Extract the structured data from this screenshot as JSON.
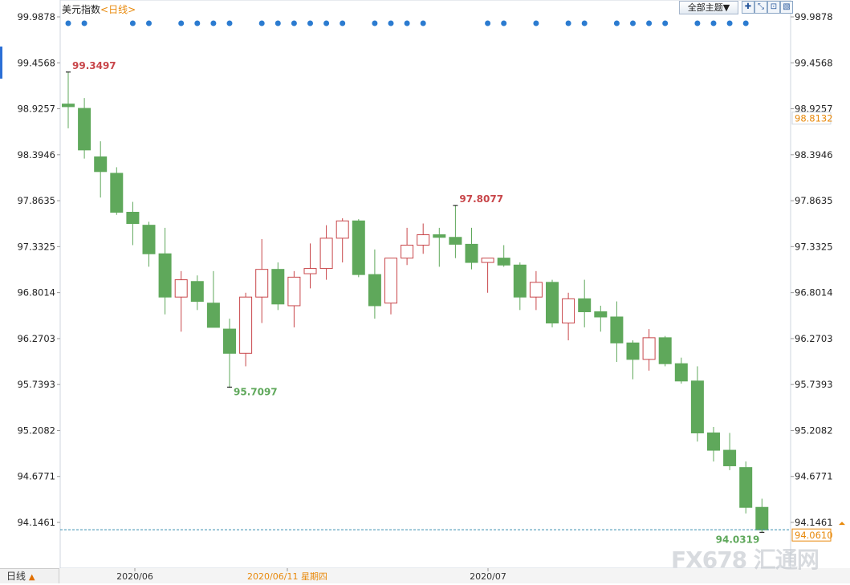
{
  "header": {
    "title": "美元指数",
    "period_label": "<日线>",
    "theme_label": "全部主题▼"
  },
  "toolbar": {
    "zoom_icon": "crosshair-icon",
    "zoom_out_icon": "zoom-out-icon",
    "fit_icon": "fit-icon",
    "compare_icon": "compare-icon"
  },
  "footer": {
    "period_button": "日线",
    "period_arrow": "▲",
    "date_labels": [
      "2020/06",
      "2020/06/11 星期四",
      "2020/07"
    ]
  },
  "watermark": "FX678 汇通网",
  "chart_data": {
    "type": "candlestick",
    "y_ticks": [
      "99.9878",
      "99.4568",
      "98.9257",
      "98.3946",
      "97.8635",
      "97.3325",
      "96.8014",
      "96.2703",
      "95.7393",
      "95.2082",
      "94.6771",
      "94.1461"
    ],
    "ylim": [
      94.1461,
      99.9878
    ],
    "annotations": {
      "high": "99.3497",
      "low": "95.7097",
      "local_high": "97.8077",
      "last_low": "94.0319",
      "current_price": "94.0610",
      "reference_price": "98.8132"
    },
    "candles": [
      {
        "o": 98.98,
        "h": 99.35,
        "l": 98.7,
        "c": 98.95
      },
      {
        "o": 98.93,
        "h": 99.05,
        "l": 98.35,
        "c": 98.45
      },
      {
        "o": 98.37,
        "h": 98.55,
        "l": 97.9,
        "c": 98.2
      },
      {
        "o": 98.18,
        "h": 98.25,
        "l": 97.7,
        "c": 97.73
      },
      {
        "o": 97.73,
        "h": 97.85,
        "l": 97.35,
        "c": 97.6
      },
      {
        "o": 97.58,
        "h": 97.62,
        "l": 97.1,
        "c": 97.25
      },
      {
        "o": 97.25,
        "h": 97.55,
        "l": 96.55,
        "c": 96.75
      },
      {
        "o": 96.75,
        "h": 97.05,
        "l": 96.35,
        "c": 96.95
      },
      {
        "o": 96.93,
        "h": 97.0,
        "l": 96.6,
        "c": 96.7
      },
      {
        "o": 96.68,
        "h": 97.05,
        "l": 96.4,
        "c": 96.4
      },
      {
        "o": 96.38,
        "h": 96.5,
        "l": 95.7,
        "c": 96.1
      },
      {
        "o": 96.1,
        "h": 96.8,
        "l": 95.95,
        "c": 96.75
      },
      {
        "o": 96.75,
        "h": 97.42,
        "l": 96.45,
        "c": 97.07
      },
      {
        "o": 97.07,
        "h": 97.15,
        "l": 96.6,
        "c": 96.67
      },
      {
        "o": 96.65,
        "h": 97.05,
        "l": 96.4,
        "c": 96.98
      },
      {
        "o": 97.02,
        "h": 97.37,
        "l": 96.85,
        "c": 97.08
      },
      {
        "o": 97.08,
        "h": 97.58,
        "l": 96.95,
        "c": 97.43
      },
      {
        "o": 97.43,
        "h": 97.66,
        "l": 97.15,
        "c": 97.63
      },
      {
        "o": 97.63,
        "h": 97.65,
        "l": 96.98,
        "c": 97.01
      },
      {
        "o": 97.01,
        "h": 97.3,
        "l": 96.5,
        "c": 96.65
      },
      {
        "o": 96.68,
        "h": 97.2,
        "l": 96.55,
        "c": 97.2
      },
      {
        "o": 97.2,
        "h": 97.55,
        "l": 97.12,
        "c": 97.35
      },
      {
        "o": 97.35,
        "h": 97.6,
        "l": 97.25,
        "c": 97.47
      },
      {
        "o": 97.47,
        "h": 97.55,
        "l": 97.1,
        "c": 97.44
      },
      {
        "o": 97.44,
        "h": 97.81,
        "l": 97.2,
        "c": 97.36
      },
      {
        "o": 97.36,
        "h": 97.55,
        "l": 97.07,
        "c": 97.15
      },
      {
        "o": 97.15,
        "h": 97.2,
        "l": 96.8,
        "c": 97.2
      },
      {
        "o": 97.2,
        "h": 97.35,
        "l": 97.1,
        "c": 97.12
      },
      {
        "o": 97.12,
        "h": 97.15,
        "l": 96.6,
        "c": 96.75
      },
      {
        "o": 96.75,
        "h": 97.05,
        "l": 96.6,
        "c": 96.92
      },
      {
        "o": 96.92,
        "h": 96.95,
        "l": 96.4,
        "c": 96.45
      },
      {
        "o": 96.45,
        "h": 96.8,
        "l": 96.25,
        "c": 96.73
      },
      {
        "o": 96.73,
        "h": 96.95,
        "l": 96.4,
        "c": 96.58
      },
      {
        "o": 96.58,
        "h": 96.65,
        "l": 96.35,
        "c": 96.52
      },
      {
        "o": 96.52,
        "h": 96.7,
        "l": 96.0,
        "c": 96.22
      },
      {
        "o": 96.22,
        "h": 96.25,
        "l": 95.8,
        "c": 96.03
      },
      {
        "o": 96.03,
        "h": 96.38,
        "l": 95.9,
        "c": 96.28
      },
      {
        "o": 96.28,
        "h": 96.3,
        "l": 95.95,
        "c": 95.98
      },
      {
        "o": 95.98,
        "h": 96.05,
        "l": 95.75,
        "c": 95.78
      },
      {
        "o": 95.78,
        "h": 95.95,
        "l": 95.08,
        "c": 95.18
      },
      {
        "o": 95.18,
        "h": 95.25,
        "l": 94.85,
        "c": 94.98
      },
      {
        "o": 94.98,
        "h": 95.18,
        "l": 94.75,
        "c": 94.8
      },
      {
        "o": 94.78,
        "h": 94.85,
        "l": 94.25,
        "c": 94.32
      },
      {
        "o": 94.32,
        "h": 94.42,
        "l": 94.03,
        "c": 94.06
      }
    ],
    "dots_row_indices": [
      0,
      1,
      4,
      5,
      7,
      8,
      9,
      10,
      12,
      13,
      14,
      15,
      16,
      17,
      19,
      20,
      21,
      22,
      26,
      27,
      29,
      31,
      32,
      34,
      35,
      36,
      37,
      39,
      40,
      41,
      42
    ]
  }
}
